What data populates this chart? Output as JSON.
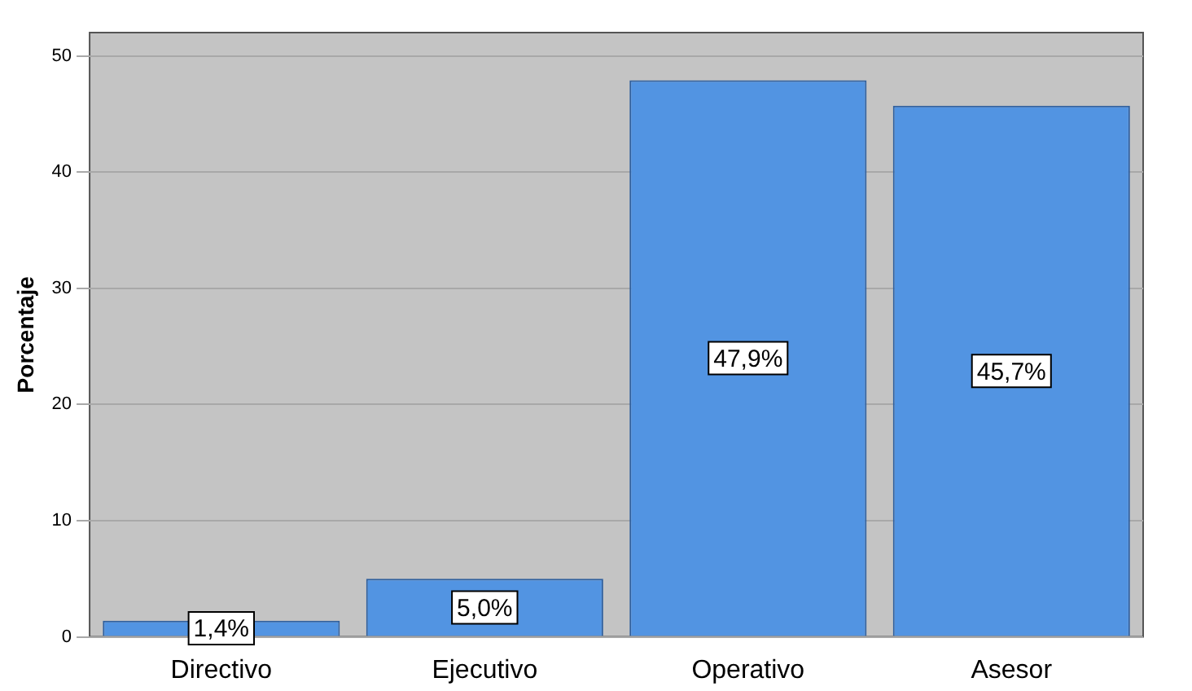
{
  "chart_data": {
    "type": "bar",
    "ylabel": "Porcentaje",
    "categories": [
      "Directivo",
      "Ejecutivo",
      "Operativo",
      "Asesor"
    ],
    "values": [
      1.4,
      5.0,
      47.9,
      45.7
    ],
    "color": "#5294e2",
    "value_labels": [
      "1,4%",
      "5,0%",
      "47,9%",
      "45,7%"
    ],
    "ylim": [
      0,
      52
    ],
    "yticks": [
      0,
      10,
      20,
      30,
      40,
      50
    ],
    "grid": "y"
  }
}
